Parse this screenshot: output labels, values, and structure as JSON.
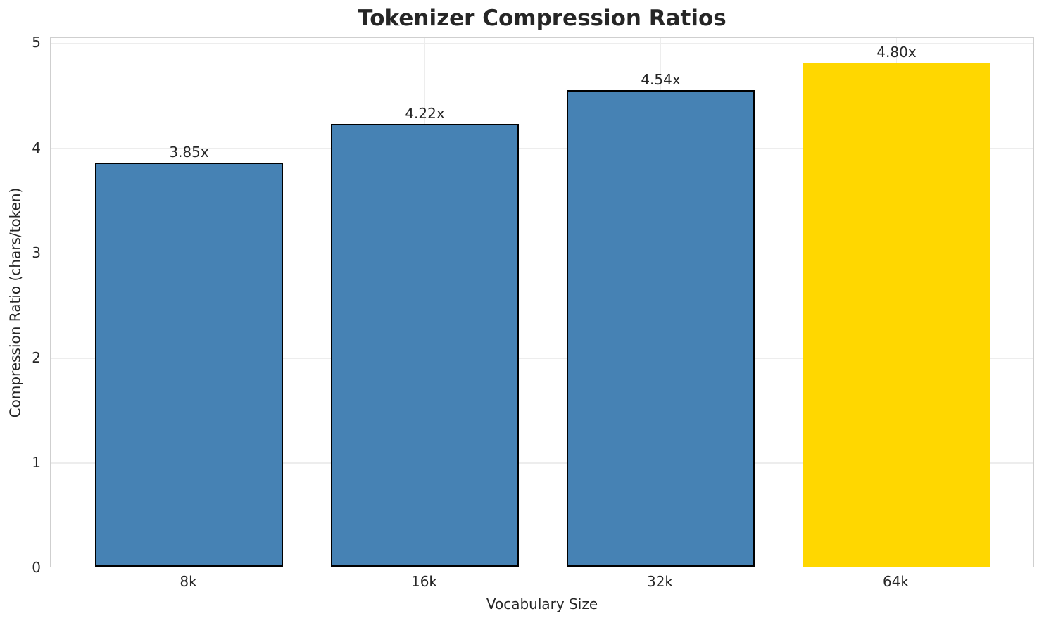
{
  "chart_data": {
    "type": "bar",
    "title": "Tokenizer Compression Ratios",
    "xlabel": "Vocabulary Size",
    "ylabel": "Compression Ratio (chars/token)",
    "categories": [
      "8k",
      "16k",
      "32k",
      "64k"
    ],
    "values": [
      3.85,
      4.22,
      4.54,
      4.8
    ],
    "bar_labels": [
      "3.85x",
      "4.22x",
      "4.54x",
      "4.80x"
    ],
    "bar_colors": [
      "#4682B4",
      "#4682B4",
      "#4682B4",
      "#FFD700"
    ],
    "bar_edge_colors": [
      "#000000",
      "#000000",
      "#000000",
      "none"
    ],
    "yticks": [
      "0",
      "1",
      "2",
      "3",
      "4",
      "5"
    ],
    "ylim": [
      0,
      5.05
    ],
    "grid": true,
    "legend": null,
    "colors": {
      "default_bar": "#4682B4",
      "highlight_bar": "#FFD700",
      "bar_edge": "#000000",
      "grid_line": "#ededed",
      "spine": "#cfcfcf",
      "text": "#262626"
    }
  }
}
